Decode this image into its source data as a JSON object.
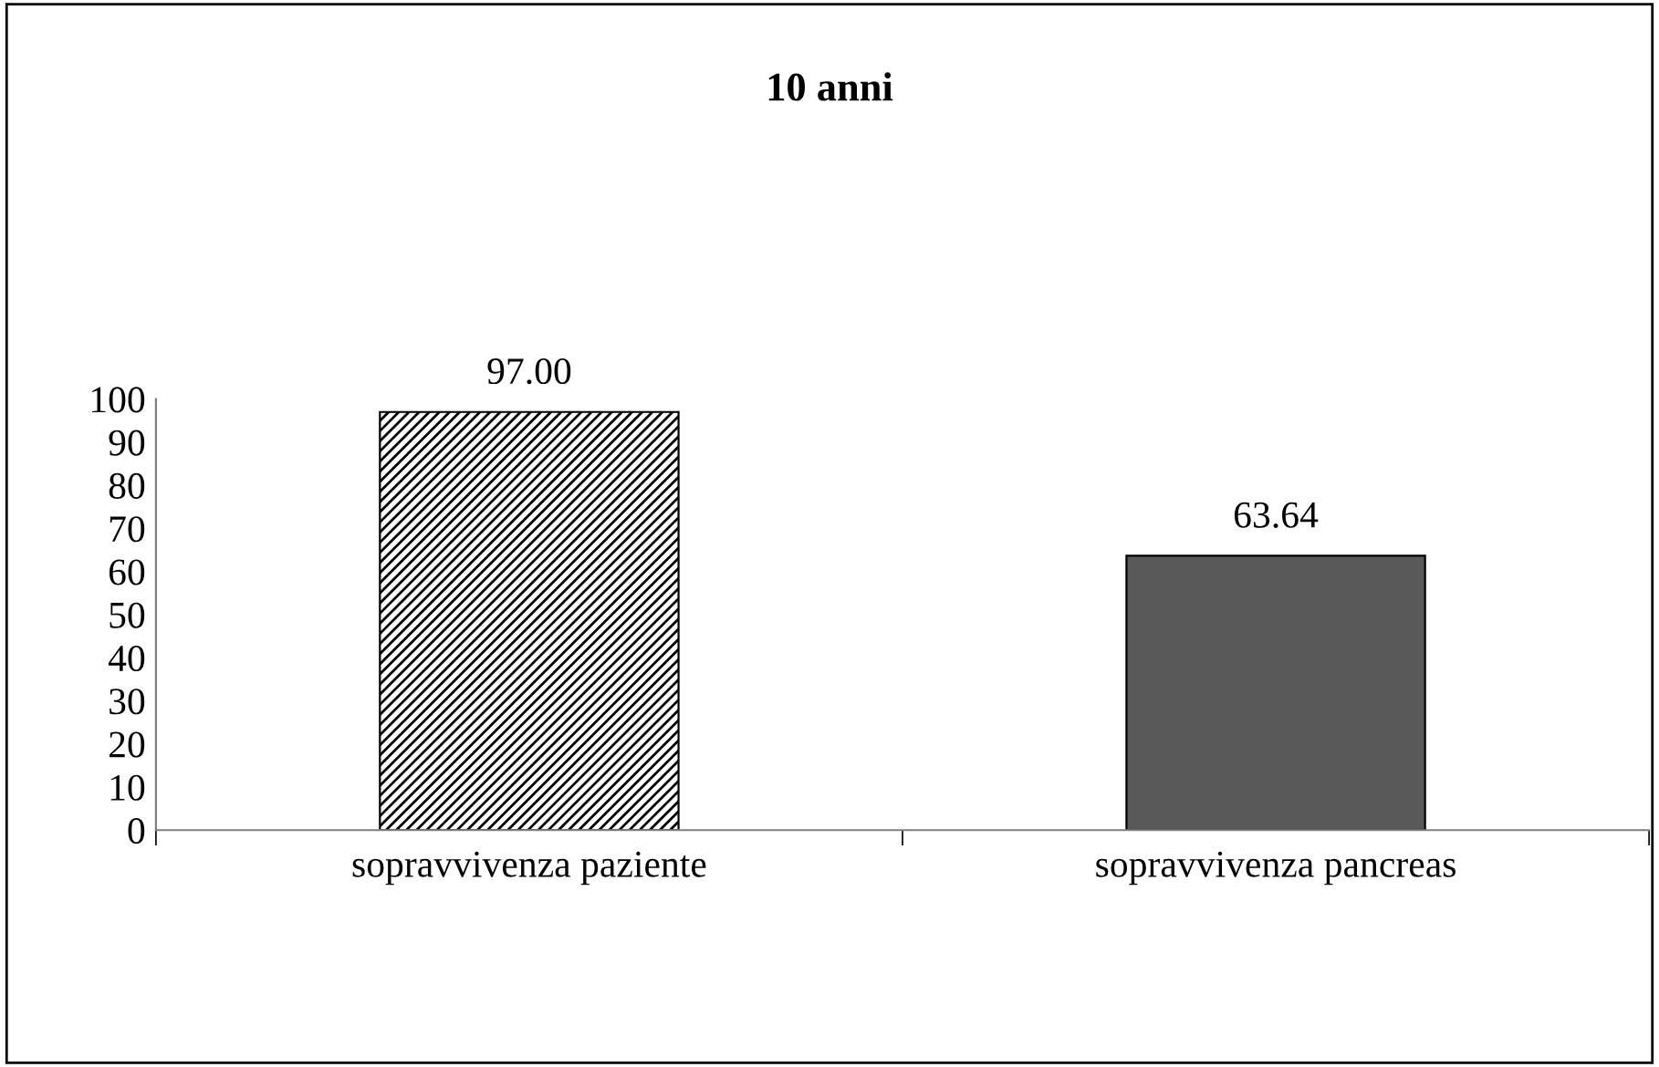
{
  "chart_data": {
    "type": "bar",
    "title": "10 anni",
    "categories": [
      "sopravvivenza paziente",
      "sopravvivenza pancreas"
    ],
    "values": [
      97.0,
      63.64
    ],
    "value_labels": [
      "97.00",
      "63.64"
    ],
    "colors": [
      "#000000",
      "#595959"
    ],
    "ylim": [
      0,
      100
    ],
    "yticks": [
      0,
      10,
      20,
      30,
      40,
      50,
      60,
      70,
      80,
      90,
      100
    ],
    "grid": false,
    "legend": false
  }
}
